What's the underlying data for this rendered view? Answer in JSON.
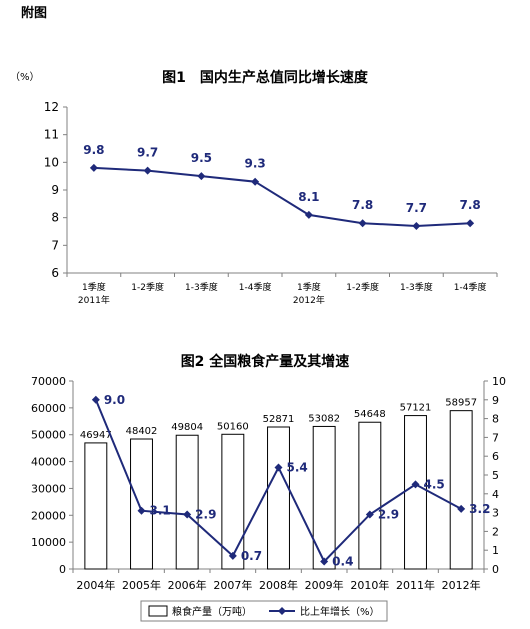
{
  "page": {
    "header": "附图"
  },
  "colors": {
    "line": "#1f2a7a",
    "bar_fill": "#ffffff",
    "bar_stroke": "#000000",
    "axis": "#808080"
  },
  "chart_data": [
    {
      "type": "line",
      "title": "图1　国内生产总值同比增长速度",
      "unit_label": "（%）",
      "categories": [
        "1季度",
        "1-2季度",
        "1-3季度",
        "1-4季度",
        "1季度",
        "1-2季度",
        "1-3季度",
        "1-4季度"
      ],
      "year_labels": [
        {
          "index": 0,
          "label": "2011年"
        },
        {
          "index": 4,
          "label": "2012年"
        }
      ],
      "series": [
        {
          "values": [
            9.8,
            9.7,
            9.5,
            9.3,
            8.1,
            7.8,
            7.7,
            7.8
          ]
        }
      ],
      "data_labels": [
        "9.8",
        "9.7",
        "9.5",
        "9.3",
        "8.1",
        "7.8",
        "7.7",
        "7.8"
      ],
      "ylim": [
        6,
        12
      ],
      "yticks": [
        "6",
        "7",
        "8",
        "9",
        "10",
        "11",
        "12"
      ],
      "grid": false
    },
    {
      "type": "bar",
      "title": "图2  全国粮食产量及其增速",
      "categories": [
        "2004年",
        "2005年",
        "2006年",
        "2007年",
        "2008年",
        "2009年",
        "2010年",
        "2011年",
        "2012年"
      ],
      "series": [
        {
          "name": "粮食产量（万吨）",
          "type": "bar",
          "axis": "left",
          "values": [
            46947,
            48402,
            49804,
            50160,
            52871,
            53082,
            54648,
            57121,
            58957
          ],
          "labels": [
            "46947",
            "48402",
            "49804",
            "50160",
            "52871",
            "53082",
            "54648",
            "57121",
            "58957"
          ]
        },
        {
          "name": "比上年增长（%）",
          "type": "line",
          "axis": "right",
          "values": [
            9.0,
            3.1,
            2.9,
            0.7,
            5.4,
            0.4,
            2.9,
            4.5,
            3.2
          ],
          "labels": [
            "9.0",
            "3.1",
            "2.9",
            "0.7",
            "5.4",
            "0.4",
            "2.9",
            "4.5",
            "3.2"
          ]
        }
      ],
      "ylim_left": [
        0,
        70000
      ],
      "yticks_left": [
        "0",
        "10000",
        "20000",
        "30000",
        "40000",
        "50000",
        "60000",
        "70000"
      ],
      "ylim_right": [
        0,
        10
      ],
      "yticks_right": [
        "0",
        "1",
        "2",
        "3",
        "4",
        "5",
        "6",
        "7",
        "8",
        "9",
        "10"
      ],
      "legend_position": "bottom",
      "legend": [
        "粮食产量（万吨）",
        "比上年增长（%）"
      ],
      "grid": false
    }
  ]
}
